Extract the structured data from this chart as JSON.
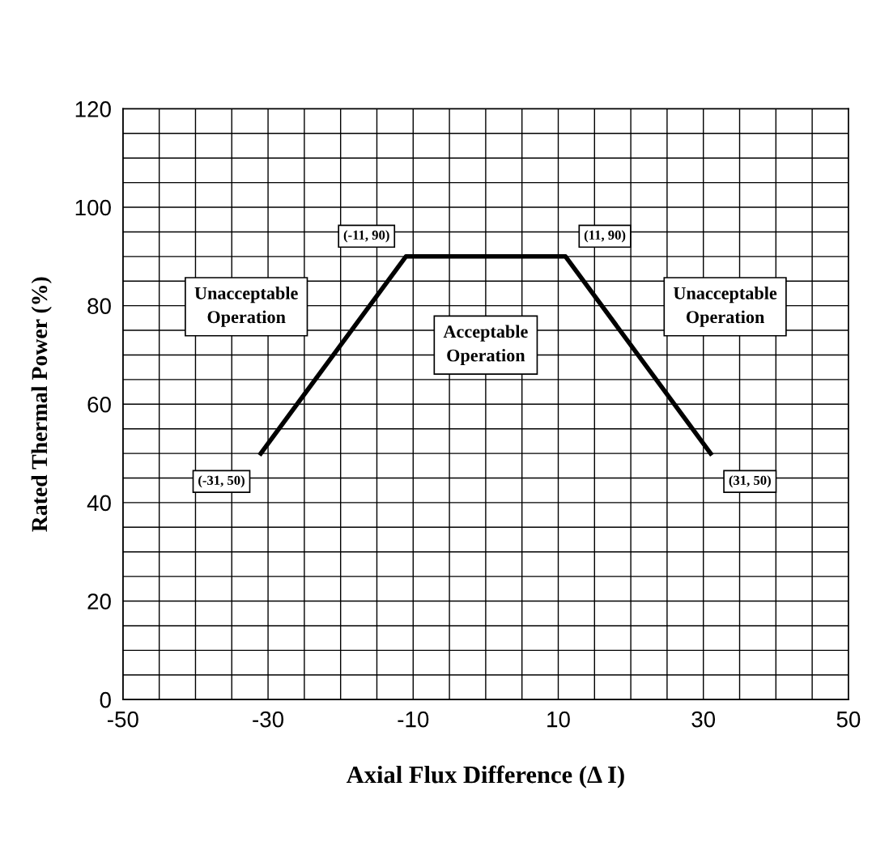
{
  "chart_data": {
    "type": "line",
    "xlabel": "Axial Flux Difference (Δ I)",
    "ylabel": "Rated Thermal Power (%)",
    "x": [
      -31,
      -11,
      11,
      31
    ],
    "values": [
      50,
      90,
      90,
      50
    ],
    "color": "#000000",
    "marker": "none",
    "line_style": "solid",
    "xlim": [
      -50,
      50
    ],
    "ylim": [
      0,
      120
    ],
    "xticks": [
      -50,
      {
        "value": -45,
        "label": null
      },
      {
        "value": -40,
        "label": null
      },
      {
        "value": -35,
        "label": null
      },
      -30,
      {
        "value": -25,
        "label": null
      },
      {
        "value": -20,
        "label": null
      },
      {
        "value": -15,
        "label": null
      },
      -10,
      {
        "value": -5,
        "label": null
      },
      {
        "value": 0,
        "label": null
      },
      {
        "value": 5,
        "label": null
      },
      10,
      {
        "value": 15,
        "label": null
      },
      {
        "value": 20,
        "label": null
      },
      {
        "value": 25,
        "label": null
      },
      30,
      {
        "value": 35,
        "label": null
      },
      {
        "value": 40,
        "label": null
      },
      {
        "value": 45,
        "label": null
      },
      50
    ],
    "yticks": [
      0,
      {
        "value": 5,
        "label": null
      },
      {
        "value": 10,
        "label": null
      },
      {
        "value": 15,
        "label": null
      },
      20,
      {
        "value": 25,
        "label": null
      },
      {
        "value": 30,
        "label": null
      },
      {
        "value": 35,
        "label": null
      },
      40,
      {
        "value": 45,
        "label": null
      },
      {
        "value": 50,
        "label": null
      },
      {
        "value": 55,
        "label": null
      },
      60,
      {
        "value": 65,
        "label": null
      },
      {
        "value": 70,
        "label": null
      },
      {
        "value": 75,
        "label": null
      },
      80,
      {
        "value": 85,
        "label": null
      },
      {
        "value": 90,
        "label": null
      },
      {
        "value": 95,
        "label": null
      },
      100,
      {
        "value": 105,
        "label": null
      },
      {
        "value": 110,
        "label": null
      },
      {
        "value": 115,
        "label": null
      },
      120
    ],
    "grid": true,
    "annotations": [
      {
        "text": "(-31, 50)",
        "x": -31,
        "y": 50
      },
      {
        "text": "(-11, 90)",
        "x": -11,
        "y": 90
      },
      {
        "text": "(11, 90)",
        "x": 11,
        "y": 90
      },
      {
        "text": "(31, 50)",
        "x": 31,
        "y": 50
      },
      "Unacceptable Operation",
      "Acceptable Operation",
      "Unacceptable Operation"
    ]
  }
}
